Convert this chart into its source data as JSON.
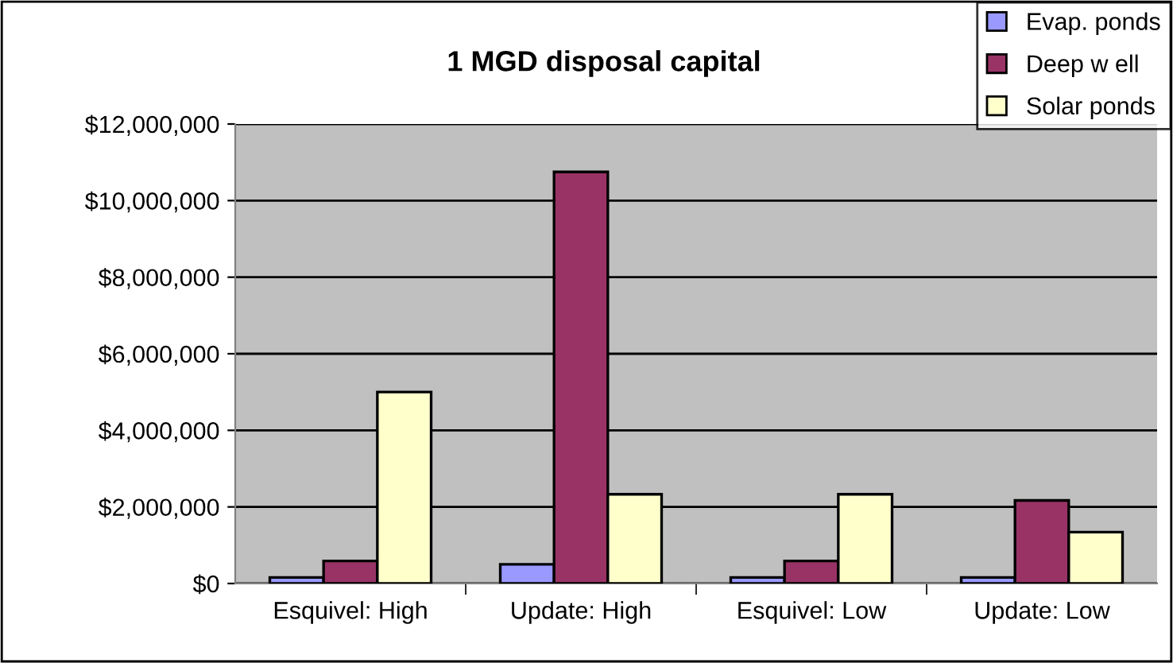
{
  "chart_data": {
    "type": "bar",
    "title": "1 MGD disposal capital",
    "categories": [
      "Esquivel: High",
      "Update: High",
      "Esquivel: Low",
      "Update: Low"
    ],
    "series": [
      {
        "name": "Evap. ponds",
        "color": "#9999ff",
        "values": [
          160000,
          500000,
          160000,
          160000
        ]
      },
      {
        "name": "Deep w ell",
        "color": "#993366",
        "values": [
          590000,
          10750000,
          590000,
          2170000
        ]
      },
      {
        "name": "Solar ponds",
        "color": "#ffffcc",
        "values": [
          5000000,
          2330000,
          2330000,
          1340000
        ]
      }
    ],
    "ylim": [
      0,
      12000000
    ],
    "yticks": [
      {
        "value": 0,
        "label": "$0"
      },
      {
        "value": 2000000,
        "label": "$2,000,000"
      },
      {
        "value": 4000000,
        "label": "$4,000,000"
      },
      {
        "value": 6000000,
        "label": "$6,000,000"
      },
      {
        "value": 8000000,
        "label": "$8,000,000"
      },
      {
        "value": 10000000,
        "label": "$10,000,000"
      },
      {
        "value": 12000000,
        "label": "$12,000,000"
      }
    ],
    "grid": "y",
    "legend": "top right"
  }
}
